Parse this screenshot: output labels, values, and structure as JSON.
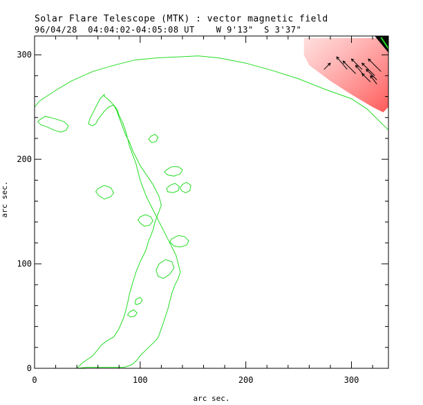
{
  "chart_data": {
    "type": "line",
    "title": "Solar Flare Telescope (MTK) : vector magnetic field",
    "subtitle": "96/04/28  04:04:02-04:05:08 UT    W 9'13\"  S 3'37\"",
    "xlabel": "arc sec.",
    "ylabel": "arc sec.",
    "xlim": [
      0,
      335
    ],
    "ylim": [
      0,
      318
    ],
    "xticks": [
      0,
      100,
      200,
      300
    ],
    "yticks": [
      0,
      100,
      200,
      300
    ],
    "contour_color": "#22dd22",
    "arrow_color": "#000000",
    "shading_color": "#ff6d6d",
    "limb_contour": {
      "x": [
        0,
        5,
        20,
        35,
        55,
        75,
        95,
        115,
        135,
        155,
        175,
        200,
        225,
        250,
        275,
        300,
        315,
        325,
        335
      ],
      "y": [
        250,
        256,
        266,
        275,
        284,
        290,
        295,
        297,
        298,
        299,
        297,
        292,
        285,
        277,
        267,
        258,
        248,
        238,
        228
      ]
    },
    "filament_contour": {
      "x": [
        40,
        45,
        55,
        60,
        63,
        68,
        75,
        80,
        85,
        88,
        90,
        93,
        96,
        100,
        105,
        108,
        112,
        114,
        117,
        120,
        118,
        115,
        112,
        108,
        104,
        100,
        97,
        93,
        90,
        86,
        83,
        80,
        78,
        76,
        73,
        70,
        68,
        66,
        66,
        62,
        60,
        58,
        56,
        54,
        52,
        51,
        55,
        58,
        60,
        63,
        66,
        70,
        75,
        78,
        80,
        83,
        86,
        88,
        90,
        93,
        96,
        98,
        100,
        103,
        106,
        110,
        114,
        118,
        122,
        126,
        130,
        134,
        136,
        138,
        136,
        133,
        130,
        128,
        126,
        124,
        122,
        120,
        118,
        116,
        112,
        108,
        104,
        100,
        97,
        95,
        93,
        91,
        88,
        85,
        82,
        80,
        78,
        76,
        74,
        72,
        70,
        68,
        66,
        64,
        62,
        60,
        58,
        56,
        50,
        40
      ],
      "y": [
        0,
        5,
        12,
        18,
        22,
        26,
        30,
        38,
        50,
        62,
        72,
        82,
        92,
        102,
        112,
        122,
        132,
        140,
        148,
        156,
        164,
        170,
        176,
        182,
        188,
        194,
        200,
        208,
        216,
        224,
        232,
        240,
        246,
        250,
        254,
        257,
        259,
        260,
        262,
        258,
        254,
        250,
        246,
        242,
        238,
        234,
        232,
        234,
        238,
        242,
        246,
        250,
        252,
        248,
        242,
        236,
        228,
        220,
        212,
        204,
        196,
        188,
        180,
        172,
        164,
        156,
        148,
        140,
        132,
        124,
        116,
        108,
        100,
        92,
        86,
        80,
        72,
        64,
        56,
        50,
        44,
        38,
        32,
        28,
        24,
        20,
        16,
        12,
        8,
        6,
        4,
        3,
        2,
        1,
        1,
        1,
        1,
        1,
        1,
        1,
        1,
        1,
        1,
        1,
        1,
        1,
        1,
        1,
        1,
        0
      ]
    },
    "islands": [
      {
        "x": [
          5,
          10,
          15,
          22,
          28,
          32,
          30,
          25,
          18,
          12,
          6,
          3,
          5
        ],
        "y": [
          238,
          241,
          240,
          238,
          236,
          232,
          228,
          226,
          228,
          231,
          233,
          236,
          238
        ]
      },
      {
        "x": [
          125,
          130,
          136,
          140,
          138,
          132,
          126,
          123,
          125
        ],
        "y": [
          190,
          193,
          193,
          190,
          186,
          184,
          185,
          188,
          190
        ]
      },
      {
        "x": [
          140,
          144,
          148,
          147,
          143,
          139,
          138,
          140
        ],
        "y": [
          176,
          178,
          175,
          170,
          168,
          170,
          173,
          176
        ]
      },
      {
        "x": [
          128,
          133,
          137,
          136,
          131,
          126,
          125,
          128
        ],
        "y": [
          175,
          177,
          174,
          170,
          168,
          169,
          172,
          175
        ]
      },
      {
        "x": [
          100,
          105,
          110,
          112,
          109,
          104,
          100,
          98,
          100
        ],
        "y": [
          145,
          147,
          145,
          141,
          137,
          136,
          139,
          142,
          145
        ]
      },
      {
        "x": [
          130,
          136,
          142,
          146,
          144,
          138,
          132,
          128,
          130
        ],
        "y": [
          124,
          127,
          126,
          122,
          118,
          116,
          117,
          121,
          124
        ]
      },
      {
        "x": [
          118,
          124,
          130,
          132,
          128,
          122,
          117,
          115,
          118
        ],
        "y": [
          100,
          104,
          102,
          96,
          90,
          86,
          88,
          94,
          100
        ]
      },
      {
        "x": [
          60,
          66,
          72,
          75,
          72,
          66,
          61,
          58,
          60
        ],
        "y": [
          172,
          175,
          173,
          168,
          164,
          162,
          165,
          169,
          172
        ]
      },
      {
        "x": [
          110,
          114,
          117,
          115,
          111,
          108,
          110
        ],
        "y": [
          222,
          224,
          221,
          217,
          216,
          219,
          222
        ]
      },
      {
        "x": [
          96,
          100,
          102,
          100,
          96,
          95,
          96
        ],
        "y": [
          66,
          68,
          65,
          62,
          61,
          63,
          66
        ]
      },
      {
        "x": [
          90,
          94,
          97,
          95,
          91,
          88,
          90
        ],
        "y": [
          54,
          56,
          53,
          50,
          49,
          51,
          54
        ]
      }
    ],
    "arrows": [
      {
        "x": 280,
        "y": 292,
        "dx": -6,
        "dy": -6
      },
      {
        "x": 286,
        "y": 298,
        "dx": 10,
        "dy": -12
      },
      {
        "x": 292,
        "y": 294,
        "dx": 12,
        "dy": -12
      },
      {
        "x": 300,
        "y": 296,
        "dx": 10,
        "dy": -10
      },
      {
        "x": 304,
        "y": 290,
        "dx": 8,
        "dy": -10
      },
      {
        "x": 310,
        "y": 292,
        "dx": 12,
        "dy": -12
      },
      {
        "x": 316,
        "y": 296,
        "dx": 12,
        "dy": -12
      },
      {
        "x": 314,
        "y": 286,
        "dx": 10,
        "dy": -10
      },
      {
        "x": 318,
        "y": 280,
        "dx": 6,
        "dy": -8
      },
      {
        "x": 310,
        "y": 282,
        "dx": 8,
        "dy": -8
      }
    ],
    "shaded_region": {
      "x": [
        255,
        275,
        300,
        320,
        335,
        335,
        330,
        320,
        300,
        280,
        260,
        255
      ],
      "y": [
        316,
        316,
        316,
        316,
        316,
        250,
        245,
        250,
        262,
        275,
        290,
        300
      ]
    }
  }
}
